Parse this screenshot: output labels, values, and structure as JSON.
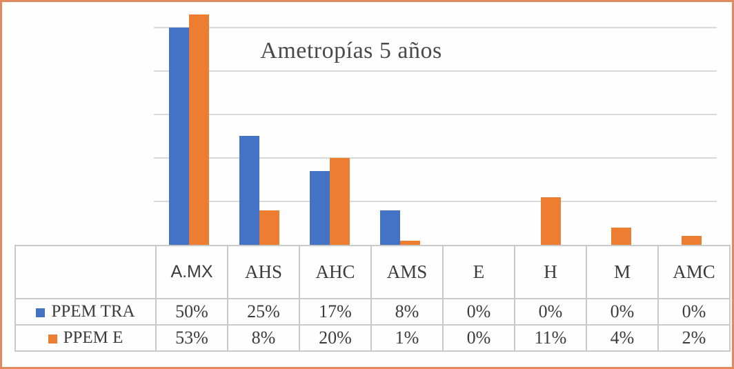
{
  "frame": {
    "border_color": "#e18a5f",
    "background": "#fefefe"
  },
  "chart_data": {
    "type": "bar",
    "title": "Ametropías 5 años",
    "categories": [
      "A.MX",
      "AHS",
      "AHC",
      "AMS",
      "E",
      "H",
      "M",
      "AMC"
    ],
    "series": [
      {
        "name": "PPEM TRA",
        "color": "#4472C4",
        "values": [
          50,
          25,
          17,
          8,
          0,
          0,
          0,
          0
        ],
        "display_values": [
          "50%",
          "25%",
          "17%",
          "8%",
          "0%",
          "0%",
          "0%",
          "0%"
        ]
      },
      {
        "name": "PPEM E",
        "color": "#ED7D31",
        "values": [
          53,
          8,
          20,
          1,
          0,
          11,
          4,
          2
        ],
        "display_values": [
          "53%",
          "8%",
          "20%",
          "1%",
          "0%",
          "11%",
          "4%",
          "2%"
        ]
      }
    ],
    "value_format": "percent",
    "ylim": [
      0,
      55
    ],
    "gridlines_percent": [
      10,
      20,
      30,
      40,
      50
    ],
    "y_axis_labels_visible": false,
    "grid_color": "#d9d9d9",
    "table_border_color": "#c9c9c9",
    "text_color": "#3c3c3c",
    "legend_position": "data-table-left",
    "data_table": true
  }
}
